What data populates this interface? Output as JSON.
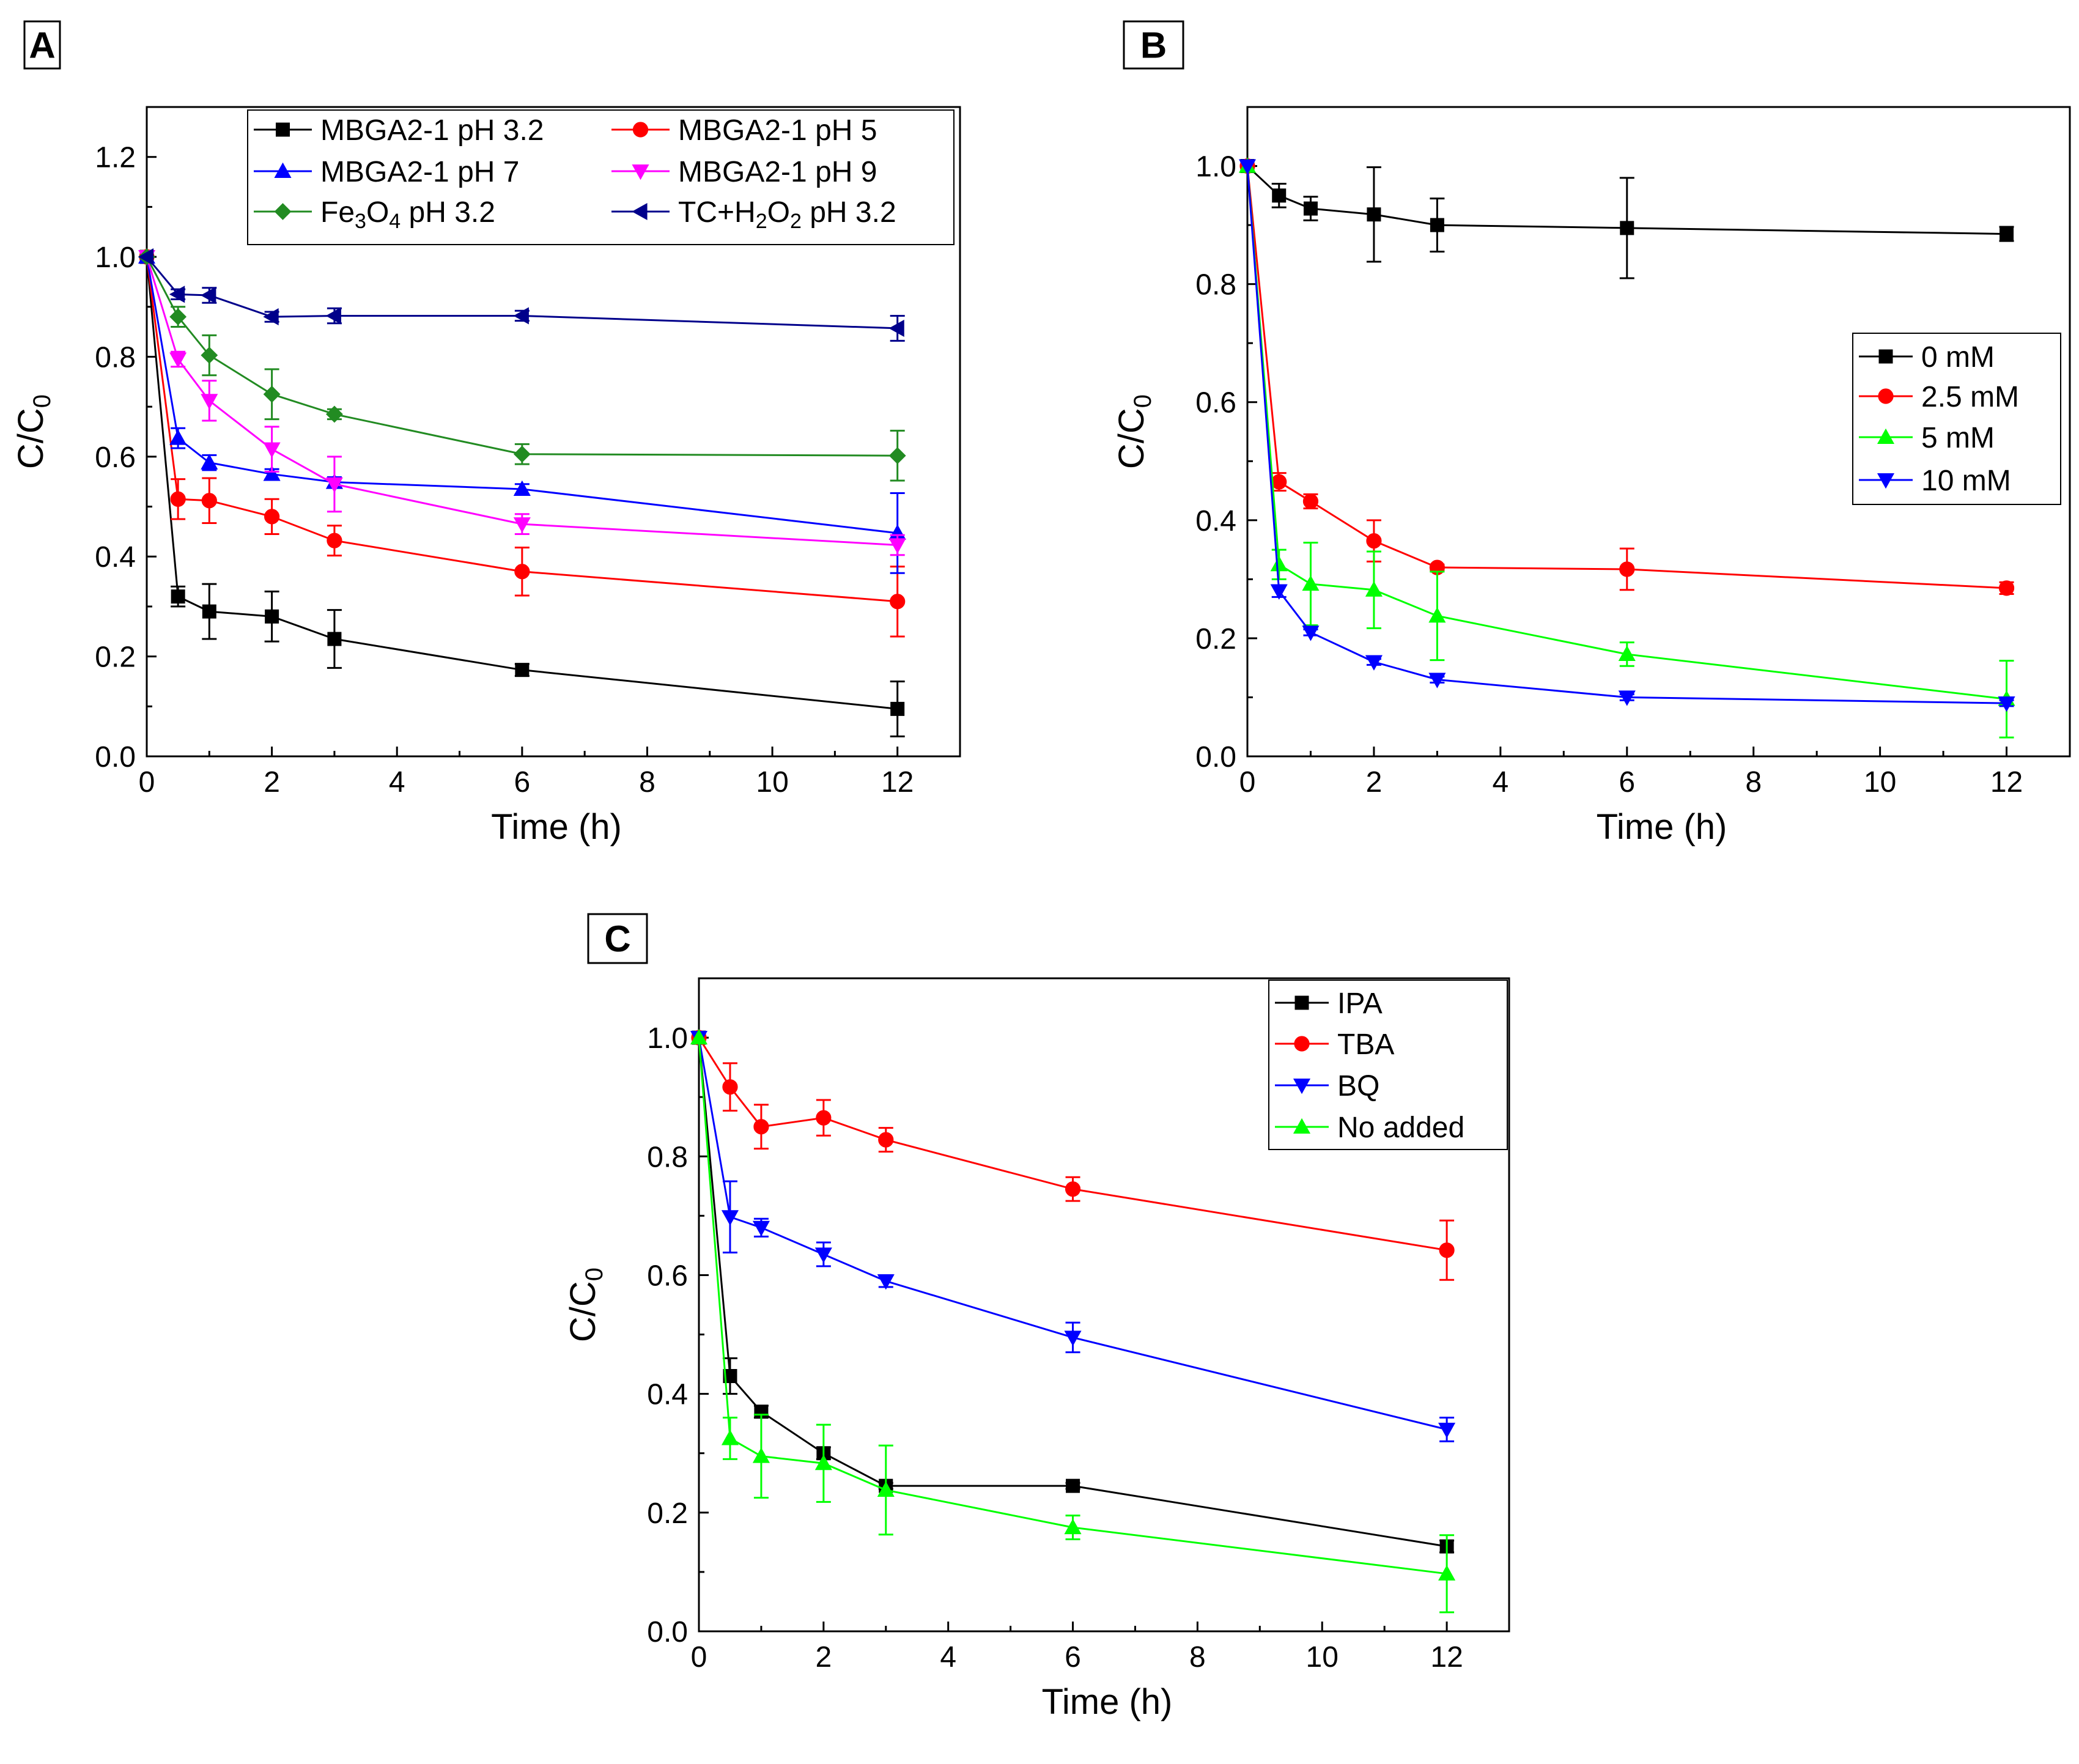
{
  "figure": {
    "panels": [
      "A",
      "B",
      "C"
    ]
  },
  "chart_data": [
    {
      "panel": "A",
      "type": "line",
      "xlabel": "Time (h)",
      "ylabel": "C/C0",
      "xlim": [
        0,
        13
      ],
      "ylim": [
        0,
        1.3
      ],
      "xticks": [
        0,
        2,
        4,
        6,
        8,
        10,
        12
      ],
      "yticks": [
        0.0,
        0.2,
        0.4,
        0.6,
        0.8,
        1.0,
        1.2
      ],
      "legend_position": "top-right",
      "legend_columns": 2,
      "x": [
        0,
        0.5,
        1,
        2,
        3,
        6,
        12
      ],
      "series": [
        {
          "name": "MBGA2-1 pH 3.2",
          "label": [
            {
              "t": "MBGA2-1 pH 3.2"
            }
          ],
          "color": "#000000",
          "marker": "square",
          "values": [
            1.0,
            0.32,
            0.29,
            0.28,
            0.235,
            0.173,
            0.095
          ],
          "errors": [
            0,
            0.02,
            0.055,
            0.05,
            0.058,
            0.012,
            0.055
          ]
        },
        {
          "name": "MBGA2-1 pH 5",
          "label": [
            {
              "t": "MBGA2-1 pH 5"
            }
          ],
          "color": "#ff0000",
          "marker": "circle",
          "values": [
            1.0,
            0.515,
            0.512,
            0.48,
            0.432,
            0.37,
            0.31
          ],
          "errors": [
            0,
            0.04,
            0.045,
            0.035,
            0.03,
            0.048,
            0.07
          ]
        },
        {
          "name": "MBGA2-1 pH 7",
          "label": [
            {
              "t": "MBGA2-1 pH 7"
            }
          ],
          "color": "#0000ff",
          "marker": "triangle-up",
          "values": [
            1.0,
            0.637,
            0.588,
            0.565,
            0.549,
            0.535,
            0.447
          ],
          "errors": [
            0,
            0.02,
            0.015,
            0.01,
            0.01,
            0.01,
            0.08
          ]
        },
        {
          "name": "MBGA2-1 pH 9",
          "label": [
            {
              "t": "MBGA2-1 pH 9"
            }
          ],
          "color": "#ff00ff",
          "marker": "triangle-down",
          "values": [
            1.0,
            0.795,
            0.712,
            0.615,
            0.545,
            0.465,
            0.423
          ],
          "errors": [
            0,
            0.015,
            0.04,
            0.045,
            0.055,
            0.02,
            0.02
          ]
        },
        {
          "name": "Fe3O4 pH 3.2",
          "label": [
            {
              "t": "Fe"
            },
            {
              "t": "3",
              "sub": true
            },
            {
              "t": "O"
            },
            {
              "t": "4",
              "sub": true
            },
            {
              "t": " pH 3.2"
            }
          ],
          "color": "#228b22",
          "marker": "diamond",
          "values": [
            1.0,
            0.88,
            0.803,
            0.725,
            0.685,
            0.605,
            0.602
          ],
          "errors": [
            0,
            0.02,
            0.04,
            0.05,
            0.01,
            0.02,
            0.05
          ]
        },
        {
          "name": "TC+H2O2 pH 3.2",
          "label": [
            {
              "t": "TC+H"
            },
            {
              "t": "2",
              "sub": true
            },
            {
              "t": "O"
            },
            {
              "t": "2",
              "sub": true
            },
            {
              "t": " pH 3.2"
            }
          ],
          "color": "#00008b",
          "marker": "triangle-left",
          "values": [
            1.0,
            0.925,
            0.923,
            0.88,
            0.882,
            0.882,
            0.857
          ],
          "errors": [
            0,
            0.01,
            0.015,
            0.01,
            0.015,
            0.01,
            0.025
          ]
        }
      ]
    },
    {
      "panel": "B",
      "type": "line",
      "xlabel": "Time (h)",
      "ylabel": "C/C0",
      "xlim": [
        0,
        13
      ],
      "ylim": [
        0,
        1.1
      ],
      "xticks": [
        0,
        2,
        4,
        6,
        8,
        10,
        12
      ],
      "yticks": [
        0.0,
        0.2,
        0.4,
        0.6,
        0.8,
        1.0
      ],
      "legend_position": "center-right",
      "legend_columns": 1,
      "x": [
        0,
        0.5,
        1,
        2,
        3,
        6,
        12
      ],
      "series": [
        {
          "name": "0 mM",
          "label": [
            {
              "t": "0 mM"
            }
          ],
          "color": "#000000",
          "marker": "square",
          "values": [
            1.0,
            0.95,
            0.928,
            0.918,
            0.9,
            0.895,
            0.885
          ],
          "errors": [
            0,
            0.02,
            0.02,
            0.08,
            0.045,
            0.085,
            0.012
          ]
        },
        {
          "name": "2.5 mM",
          "label": [
            {
              "t": "2.5 mM"
            }
          ],
          "color": "#ff0000",
          "marker": "circle",
          "values": [
            1.0,
            0.465,
            0.432,
            0.365,
            0.32,
            0.317,
            0.285
          ],
          "errors": [
            0,
            0.015,
            0.012,
            0.035,
            0.005,
            0.035,
            0.01
          ]
        },
        {
          "name": "5 mM",
          "label": [
            {
              "t": "5 mM"
            }
          ],
          "color": "#00ff00",
          "marker": "triangle-up",
          "values": [
            1.0,
            0.325,
            0.292,
            0.282,
            0.238,
            0.173,
            0.097
          ],
          "errors": [
            0,
            0.025,
            0.07,
            0.065,
            0.075,
            0.02,
            0.065
          ]
        },
        {
          "name": "10 mM",
          "label": [
            {
              "t": "10 mM"
            }
          ],
          "color": "#0000ff",
          "marker": "triangle-down",
          "values": [
            1.0,
            0.28,
            0.21,
            0.16,
            0.13,
            0.1,
            0.09
          ],
          "errors": [
            0,
            0.01,
            0.005,
            0.005,
            0.005,
            0.005,
            0.005
          ]
        }
      ]
    },
    {
      "panel": "C",
      "type": "line",
      "xlabel": "Time (h)",
      "ylabel": "C/C0",
      "xlim": [
        0,
        13
      ],
      "ylim": [
        0,
        1.1
      ],
      "xticks": [
        0,
        2,
        4,
        6,
        8,
        10,
        12
      ],
      "yticks": [
        0.0,
        0.2,
        0.4,
        0.6,
        0.8,
        1.0
      ],
      "legend_position": "top-right",
      "legend_columns": 1,
      "x": [
        0,
        0.5,
        1,
        2,
        3,
        6,
        12
      ],
      "series": [
        {
          "name": "IPA",
          "label": [
            {
              "t": "IPA"
            }
          ],
          "color": "#000000",
          "marker": "square",
          "values": [
            1.0,
            0.43,
            0.37,
            0.3,
            0.245,
            0.245,
            0.143
          ],
          "errors": [
            0,
            0.03,
            0.01,
            0.01,
            0.005,
            0.005,
            0.01
          ]
        },
        {
          "name": "TBA",
          "label": [
            {
              "t": "TBA"
            }
          ],
          "color": "#ff0000",
          "marker": "circle",
          "values": [
            1.0,
            0.917,
            0.85,
            0.865,
            0.828,
            0.745,
            0.642
          ],
          "errors": [
            0,
            0.04,
            0.037,
            0.03,
            0.02,
            0.02,
            0.05
          ]
        },
        {
          "name": "BQ",
          "label": [
            {
              "t": "BQ"
            }
          ],
          "color": "#0000ff",
          "marker": "triangle-down",
          "values": [
            1.0,
            0.698,
            0.68,
            0.635,
            0.59,
            0.495,
            0.34
          ],
          "errors": [
            0,
            0.06,
            0.015,
            0.02,
            0.01,
            0.025,
            0.02
          ]
        },
        {
          "name": "No added",
          "label": [
            {
              "t": "No added"
            }
          ],
          "color": "#00ff00",
          "marker": "triangle-up",
          "values": [
            1.0,
            0.325,
            0.295,
            0.283,
            0.238,
            0.175,
            0.097
          ],
          "errors": [
            0,
            0.035,
            0.07,
            0.065,
            0.075,
            0.02,
            0.065
          ]
        }
      ]
    }
  ]
}
